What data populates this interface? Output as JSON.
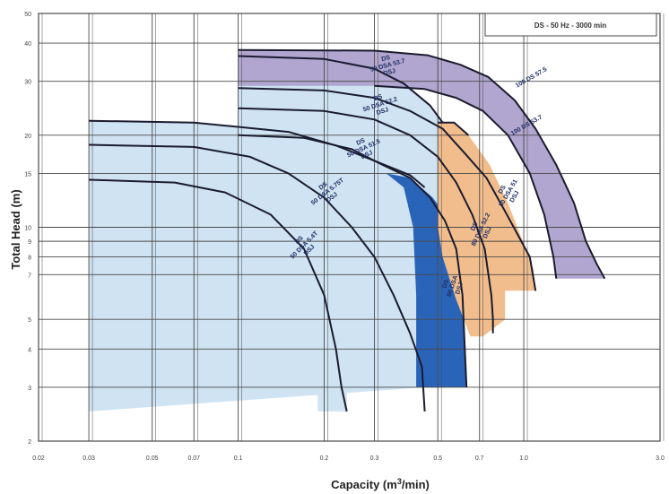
{
  "chart_data": {
    "type": "area",
    "xlabel": "Capacity (m",
    "xlabel_sup": "3",
    "xlabel_tail": "/min)",
    "ylabel": "Total Head (m)",
    "header_box": "DS - 50 Hz - 3000 min",
    "x_scale": "log",
    "y_scale": "log",
    "xlim": [
      0.02,
      3
    ],
    "ylim": [
      2,
      50
    ],
    "x_ticks": [
      0.02,
      0.03,
      0.05,
      0.07,
      0.1,
      0.2,
      0.3,
      0.5,
      0.7,
      1,
      3
    ],
    "x_tick_labels": [
      "0.02",
      "0.03",
      "0.05",
      "0.07",
      "0.1",
      "0.2",
      "0.3",
      "0.5",
      "0.7",
      "1.0",
      "3.0"
    ],
    "y_ticks": [
      2,
      3,
      4,
      5,
      7,
      8,
      9,
      10,
      15,
      20,
      30,
      40,
      50
    ],
    "y_tick_labels": [
      "2",
      "3",
      "4",
      "5",
      "7",
      "8",
      "9",
      "10",
      "15",
      "20",
      "30",
      "40",
      "50"
    ],
    "grid": true,
    "colors": {
      "light": "#cfe3f2",
      "dark": "#2a64b8",
      "orange": "#f2bd8c",
      "purple": "#b1a6cf",
      "curve": "#1b1b2e",
      "grid": "#4a4a4a"
    },
    "regions": [
      {
        "color": "light",
        "points": [
          [
            0.03,
            2.5
          ],
          [
            0.03,
            22.3
          ],
          [
            0.07,
            22
          ],
          [
            0.15,
            20.5
          ],
          [
            0.22,
            18.5
          ],
          [
            0.3,
            16.5
          ],
          [
            0.4,
            14.8
          ],
          [
            0.45,
            13.5
          ],
          [
            0.45,
            3
          ]
        ]
      },
      {
        "color": "light",
        "points": [
          [
            0.1,
            3
          ],
          [
            0.1,
            36.3
          ],
          [
            0.2,
            35.5
          ],
          [
            0.3,
            33
          ],
          [
            0.38,
            29.5
          ],
          [
            0.47,
            25
          ],
          [
            0.52,
            22
          ],
          [
            0.52,
            3
          ]
        ]
      },
      {
        "color": "light",
        "points": [
          [
            0.19,
            2.5
          ],
          [
            0.24,
            2.5
          ],
          [
            0.24,
            3
          ],
          [
            0.19,
            3
          ]
        ]
      },
      {
        "color": "dark",
        "points": [
          [
            0.33,
            15
          ],
          [
            0.4,
            14.5
          ],
          [
            0.48,
            12.5
          ],
          [
            0.54,
            10.8
          ],
          [
            0.58,
            9.2
          ],
          [
            0.6,
            7.5
          ],
          [
            0.61,
            6
          ],
          [
            0.62,
            4.5
          ],
          [
            0.63,
            3
          ],
          [
            0.42,
            3
          ],
          [
            0.42,
            6
          ],
          [
            0.41,
            10
          ],
          [
            0.38,
            13.5
          ]
        ]
      },
      {
        "color": "orange",
        "points": [
          [
            0.5,
            22
          ],
          [
            0.57,
            22
          ],
          [
            0.64,
            20
          ],
          [
            0.76,
            16
          ],
          [
            0.88,
            12
          ],
          [
            0.97,
            9.5
          ],
          [
            1.03,
            8.2
          ],
          [
            1.08,
            7.3
          ],
          [
            1.1,
            6.2
          ],
          [
            0.86,
            6.2
          ],
          [
            0.86,
            5
          ],
          [
            0.72,
            4.4
          ],
          [
            0.65,
            4.4
          ],
          [
            0.58,
            5.8
          ],
          [
            0.52,
            8
          ],
          [
            0.5,
            10
          ]
        ]
      },
      {
        "color": "purple",
        "points": [
          [
            0.1,
            38
          ],
          [
            0.3,
            37.8
          ],
          [
            0.46,
            36.5
          ],
          [
            0.6,
            34
          ],
          [
            0.75,
            31
          ],
          [
            0.93,
            26
          ],
          [
            1.1,
            21
          ],
          [
            1.3,
            16
          ],
          [
            1.5,
            12
          ],
          [
            1.65,
            9
          ],
          [
            1.8,
            7.6
          ],
          [
            1.92,
            6.8
          ],
          [
            1.6,
            6.8
          ],
          [
            1.3,
            6.8
          ],
          [
            1.27,
            8
          ],
          [
            1.18,
            11
          ],
          [
            1.05,
            15
          ],
          [
            0.88,
            20
          ],
          [
            0.72,
            24
          ],
          [
            0.58,
            26.5
          ],
          [
            0.45,
            28.3
          ],
          [
            0.3,
            29
          ],
          [
            0.1,
            29
          ]
        ]
      }
    ],
    "curves": [
      {
        "points": [
          [
            0.03,
            14.3
          ],
          [
            0.06,
            14
          ],
          [
            0.09,
            13
          ],
          [
            0.13,
            11
          ],
          [
            0.17,
            8.5
          ],
          [
            0.2,
            6
          ],
          [
            0.22,
            4
          ],
          [
            0.23,
            3
          ],
          [
            0.24,
            2.5
          ]
        ]
      },
      {
        "points": [
          [
            0.03,
            18.6
          ],
          [
            0.07,
            18.3
          ],
          [
            0.11,
            17
          ],
          [
            0.15,
            15
          ],
          [
            0.2,
            12.5
          ],
          [
            0.25,
            10
          ],
          [
            0.3,
            8
          ],
          [
            0.35,
            6
          ],
          [
            0.4,
            4.5
          ],
          [
            0.44,
            3.5
          ],
          [
            0.45,
            2.5
          ]
        ]
      },
      {
        "points": [
          [
            0.1,
            20
          ],
          [
            0.17,
            19.6
          ],
          [
            0.25,
            18
          ],
          [
            0.32,
            16
          ],
          [
            0.4,
            14.5
          ],
          [
            0.47,
            12.5
          ],
          [
            0.53,
            10.5
          ],
          [
            0.58,
            8.5
          ],
          [
            0.61,
            6
          ],
          [
            0.63,
            3
          ]
        ]
      },
      {
        "points": [
          [
            0.1,
            24.5
          ],
          [
            0.2,
            24
          ],
          [
            0.3,
            22.5
          ],
          [
            0.4,
            20
          ],
          [
            0.5,
            17
          ],
          [
            0.58,
            14
          ],
          [
            0.66,
            11
          ],
          [
            0.73,
            8.5
          ],
          [
            0.77,
            6
          ],
          [
            0.78,
            5
          ],
          [
            0.78,
            4.5
          ]
        ]
      },
      {
        "points": [
          [
            0.1,
            28.5
          ],
          [
            0.2,
            28
          ],
          [
            0.3,
            26.5
          ],
          [
            0.4,
            24
          ],
          [
            0.52,
            21
          ],
          [
            0.62,
            17.5
          ],
          [
            0.74,
            14.5
          ],
          [
            0.85,
            11.5
          ],
          [
            0.95,
            9.5
          ],
          [
            1.05,
            8
          ],
          [
            1.1,
            6.2
          ]
        ]
      },
      {
        "points": [
          [
            0.3,
            29
          ],
          [
            0.45,
            28.3
          ],
          [
            0.58,
            26.5
          ],
          [
            0.72,
            24
          ],
          [
            0.88,
            20
          ],
          [
            1.05,
            15
          ],
          [
            1.18,
            11
          ],
          [
            1.27,
            8
          ],
          [
            1.3,
            6.8
          ]
        ]
      },
      {
        "points": [
          [
            0.1,
            38
          ],
          [
            0.3,
            37.8
          ],
          [
            0.46,
            36.5
          ],
          [
            0.6,
            34
          ],
          [
            0.75,
            31
          ],
          [
            0.93,
            26
          ],
          [
            1.1,
            21
          ],
          [
            1.3,
            16
          ],
          [
            1.5,
            12
          ],
          [
            1.65,
            9
          ],
          [
            1.8,
            7.6
          ],
          [
            1.92,
            6.8
          ]
        ]
      },
      {
        "points": [
          [
            0.03,
            22.3
          ],
          [
            0.07,
            22
          ],
          [
            0.15,
            20.5
          ],
          [
            0.22,
            18.5
          ],
          [
            0.3,
            16.5
          ],
          [
            0.4,
            14.8
          ],
          [
            0.45,
            13.5
          ]
        ]
      },
      {
        "points": [
          [
            0.1,
            36.3
          ],
          [
            0.2,
            35.5
          ],
          [
            0.3,
            33
          ],
          [
            0.38,
            29.5
          ],
          [
            0.47,
            25
          ],
          [
            0.52,
            22
          ]
        ]
      },
      {
        "points": [
          [
            0.5,
            22
          ],
          [
            0.57,
            22
          ],
          [
            0.64,
            20
          ]
        ]
      }
    ],
    "curve_labels": [
      {
        "lines": [
          "DS",
          "50 DSA 5.4T",
          "DSJ"
        ],
        "x": 0.165,
        "y": 9,
        "angle": -45
      },
      {
        "lines": [
          "DS",
          "50 DSA 5.75T",
          "DSJ"
        ],
        "x": 0.2,
        "y": 13.5,
        "angle": -38
      },
      {
        "lines": [
          "DS",
          "50 DSA 51.5",
          "DSJ"
        ],
        "x": 0.27,
        "y": 18.8,
        "angle": -25
      },
      {
        "lines": [
          "DS",
          "50 DSA 52.2",
          "DSJ"
        ],
        "x": 0.31,
        "y": 26.2,
        "angle": -18
      },
      {
        "lines": [
          "DS",
          "50 DSA 53.7",
          "DSJ"
        ],
        "x": 0.33,
        "y": 35.2,
        "angle": -15
      },
      {
        "lines": [
          "DS",
          "80 DSA 51",
          "DSJ"
        ],
        "x": 0.85,
        "y": 13.2,
        "angle": -60
      },
      {
        "lines": [
          "DS",
          "80 DSA 52.2",
          "DSJ"
        ],
        "x": 0.68,
        "y": 10,
        "angle": -65
      },
      {
        "lines": [
          "DS",
          "80 DSA",
          "DSJ"
        ],
        "x": 0.54,
        "y": 6.5,
        "angle": -72
      },
      {
        "lines": [
          "100 DS 53.7"
        ],
        "x": 1.03,
        "y": 21.3,
        "angle": -30
      },
      {
        "lines": [
          "100 DS 57.5"
        ],
        "x": 1.07,
        "y": 30.5,
        "angle": -30
      }
    ]
  }
}
